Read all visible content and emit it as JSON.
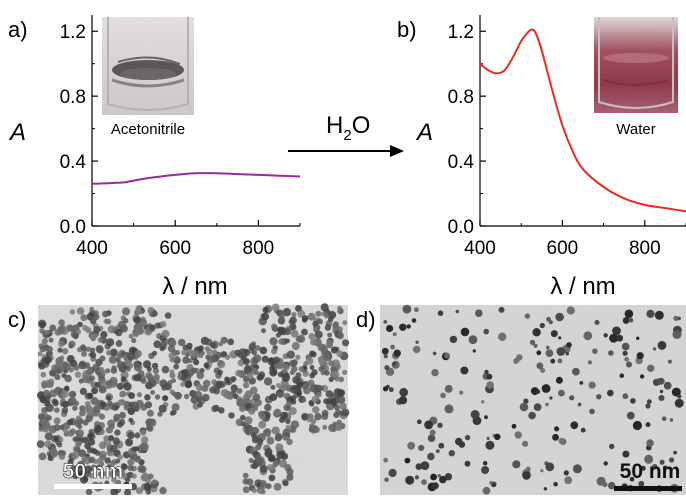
{
  "chart_data": [
    {
      "panel": "a)",
      "type": "line",
      "ylabel": "A",
      "xlabel": "λ / nm",
      "xlim": [
        400,
        900
      ],
      "ylim": [
        0.0,
        1.3
      ],
      "xticks": [
        "400",
        "600",
        "800"
      ],
      "yticks": [
        "0.0",
        "0.4",
        "0.8",
        "1.2"
      ],
      "inset_caption": "Acetonitrile",
      "line_color": "#9a2a9a",
      "series": [
        {
          "x": [
            400,
            450,
            480,
            500,
            550,
            600,
            650,
            700,
            750,
            800,
            850,
            900
          ],
          "values": [
            0.26,
            0.265,
            0.27,
            0.28,
            0.3,
            0.315,
            0.325,
            0.325,
            0.32,
            0.315,
            0.31,
            0.305
          ]
        }
      ]
    },
    {
      "panel": "b)",
      "type": "line",
      "ylabel": "A",
      "xlabel": "λ / nm",
      "xlim": [
        400,
        900
      ],
      "ylim": [
        0.0,
        1.3
      ],
      "xticks": [
        "400",
        "600",
        "800"
      ],
      "yticks": [
        "0.0",
        "0.4",
        "0.8",
        "1.2"
      ],
      "inset_caption": "Water",
      "line_color": "#ee2a1e",
      "series": [
        {
          "x": [
            400,
            420,
            440,
            460,
            480,
            500,
            515,
            525,
            535,
            550,
            575,
            600,
            625,
            650,
            700,
            750,
            800,
            850,
            900
          ],
          "values": [
            1.0,
            0.96,
            0.94,
            0.96,
            1.04,
            1.14,
            1.19,
            1.21,
            1.19,
            1.08,
            0.84,
            0.62,
            0.46,
            0.35,
            0.24,
            0.17,
            0.13,
            0.11,
            0.09
          ]
        }
      ]
    }
  ],
  "arrow_label": {
    "main": "H",
    "sub": "2",
    "rest": "O"
  },
  "micrographs": [
    {
      "panel": "c)",
      "scale_bar": "50 nm"
    },
    {
      "panel": "d)",
      "scale_bar": "50 nm"
    }
  ]
}
